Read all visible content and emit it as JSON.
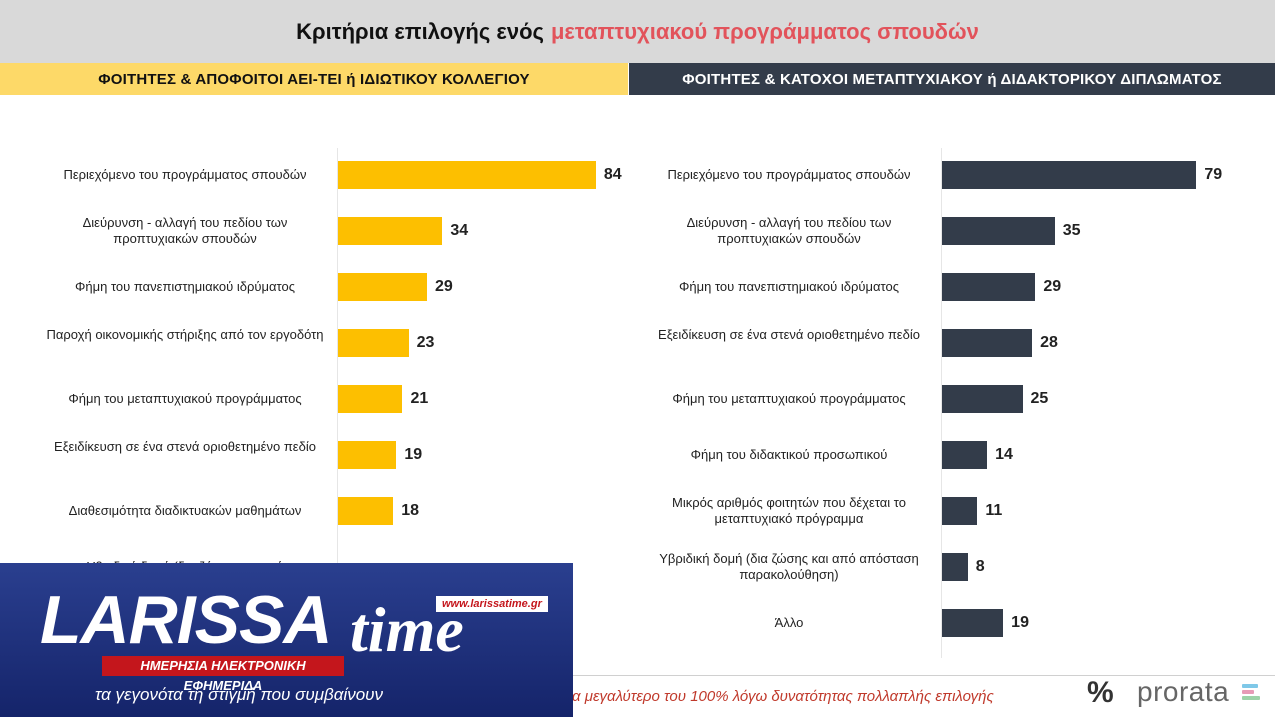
{
  "title": {
    "main": "Κριτήρια επιλογής ενός",
    "accent": "μεταπτυχιακού προγράμματος σπουδών"
  },
  "panels": {
    "left_header": "ΦΟΙΤΗΤΕΣ & ΑΠΟΦΟΙΤΟΙ ΑΕΙ-ΤΕΙ ή ΙΔΙΩΤΙΚΟΥ ΚΟΛΛΕΓΙΟΥ",
    "right_header": "ΦΟΙΤΗΤΕΣ & ΚΑΤΟΧΟΙ ΜΕΤΑΠΤΥΧΙΑΚΟΥ ή ΔΙΔΑΚΤΟΡΙΚΟΥ ΔΙΠΛΩΜΑΤΟΣ"
  },
  "chart_data": [
    {
      "type": "bar",
      "orientation": "horizontal",
      "color": "#fdbf00",
      "categories": [
        "Περιεχόμενο του προγράμματος σπουδών",
        "Διεύρυνση - αλλαγή του πεδίου των προπτυχιακών σπουδών",
        "Φήμη του πανεπιστημιακού ιδρύματος",
        "Παροχή οικονομικής στήριξης από τον εργοδότη",
        "Φήμη του μεταπτυχιακού προγράμματος",
        "Εξειδίκευση σε ένα στενά οριοθετημένο πεδίο",
        "Διαθεσιμότητα διαδικτυακών μαθημάτων",
        "Υβριδική δομή (δια ζώσης και από"
      ],
      "values": [
        84,
        34,
        29,
        23,
        21,
        19,
        18,
        null
      ],
      "ylim": [
        0,
        100
      ]
    },
    {
      "type": "bar",
      "orientation": "horizontal",
      "color": "#333c4a",
      "categories": [
        "Περιεχόμενο του προγράμματος σπουδών",
        "Διεύρυνση - αλλαγή του πεδίου των προπτυχιακών σπουδών",
        "Φήμη του πανεπιστημιακού ιδρύματος",
        "Εξειδίκευση σε ένα στενά οριοθετημένο πεδίο",
        "Φήμη του μεταπτυχιακού προγράμματος",
        "Φήμη του διδακτικού προσωπικού",
        "Μικρός αριθμός φοιτητών που δέχεται το μεταπτυχιακό πρόγραμμα",
        "Υβριδική δομή (δια ζώσης και από απόσταση παρακολούθηση)",
        "Άλλο"
      ],
      "values": [
        79,
        35,
        29,
        28,
        25,
        14,
        11,
        8,
        19
      ],
      "ylim": [
        0,
        100
      ]
    }
  ],
  "footnote": "α μεγαλύτερο του 100% λόγω δυνατότητας πολλαπλής επιλογής",
  "brand": {
    "symbol": "%",
    "name": "prorata",
    "mark_colors": [
      "#7fc8e8",
      "#e79bb6",
      "#9dd3a8"
    ]
  },
  "overlay": {
    "url": "www.larissatime.gr",
    "logo_main": "LARISSA",
    "logo_time": "time",
    "subtitle": "ΗΜΕΡΗΣΙΑ ΗΛΕΚΤΡΟΝΙΚΗ ΕΦΗΜΕΡΙΔΑ",
    "tagline": "τα γεγονότα τη στιγμή που συμβαίνουν"
  }
}
